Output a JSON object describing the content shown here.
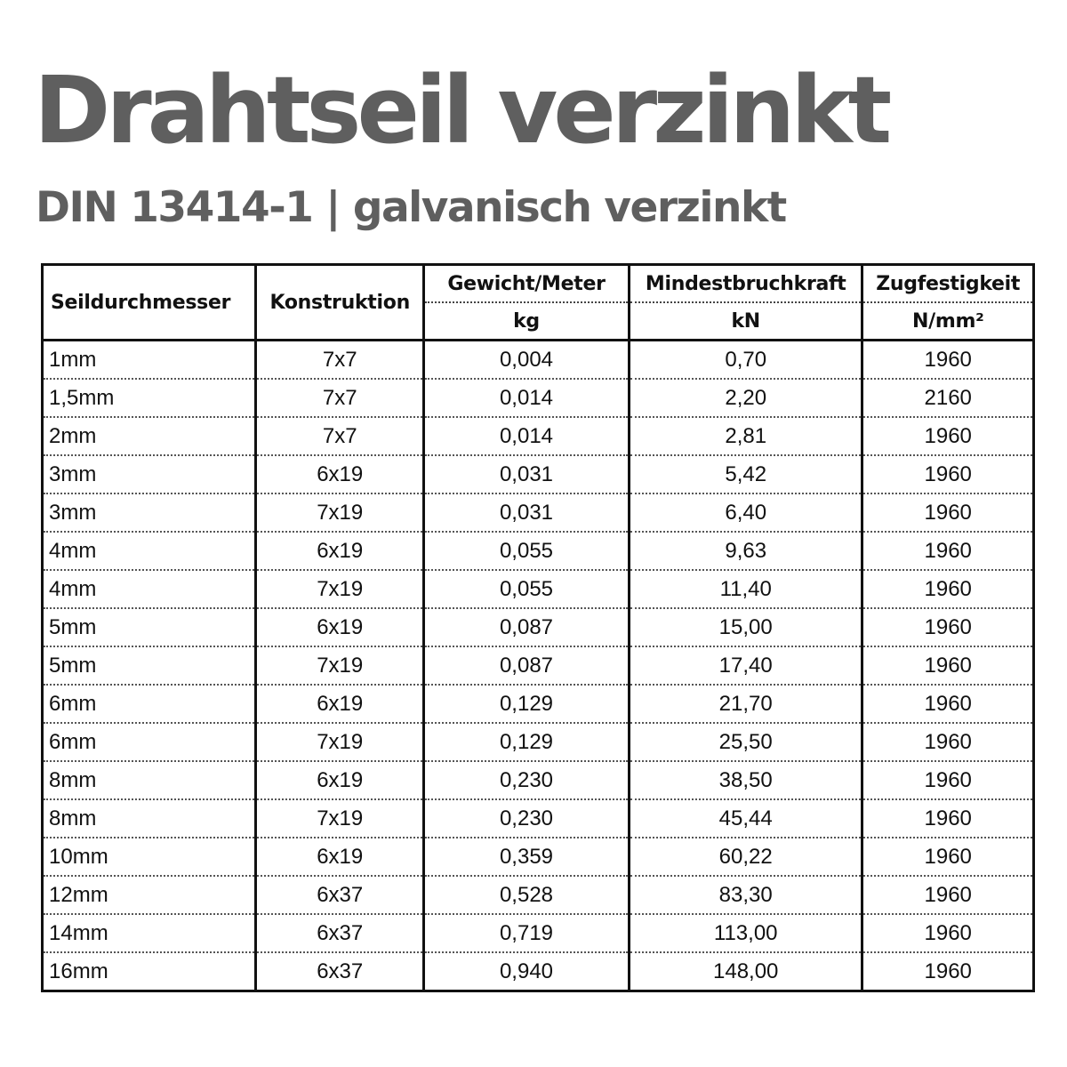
{
  "title": "Drahtseil verzinkt",
  "subtitle": "DIN 13414-1 | galvanisch verzinkt",
  "table": {
    "headers": {
      "diameter": "Seildurchmesser",
      "construction": "Konstruktion",
      "weight": "Gewicht/Meter",
      "weight_unit": "kg",
      "breaking_force": "Mindestbruchkraft",
      "breaking_force_unit": "kN",
      "tensile_strength": "Zugfestigkeit",
      "tensile_strength_unit": "N/mm²"
    },
    "rows": [
      [
        "1mm",
        "7x7",
        "0,004",
        "0,70",
        "1960"
      ],
      [
        "1,5mm",
        "7x7",
        "0,014",
        "2,20",
        "2160"
      ],
      [
        "2mm",
        "7x7",
        "0,014",
        "2,81",
        "1960"
      ],
      [
        "3mm",
        "6x19",
        "0,031",
        "5,42",
        "1960"
      ],
      [
        "3mm",
        "7x19",
        "0,031",
        "6,40",
        "1960"
      ],
      [
        "4mm",
        "6x19",
        "0,055",
        "9,63",
        "1960"
      ],
      [
        "4mm",
        "7x19",
        "0,055",
        "11,40",
        "1960"
      ],
      [
        "5mm",
        "6x19",
        "0,087",
        "15,00",
        "1960"
      ],
      [
        "5mm",
        "7x19",
        "0,087",
        "17,40",
        "1960"
      ],
      [
        "6mm",
        "6x19",
        "0,129",
        "21,70",
        "1960"
      ],
      [
        "6mm",
        "7x19",
        "0,129",
        "25,50",
        "1960"
      ],
      [
        "8mm",
        "6x19",
        "0,230",
        "38,50",
        "1960"
      ],
      [
        "8mm",
        "7x19",
        "0,230",
        "45,44",
        "1960"
      ],
      [
        "10mm",
        "6x19",
        "0,359",
        "60,22",
        "1960"
      ],
      [
        "12mm",
        "6x37",
        "0,528",
        "83,30",
        "1960"
      ],
      [
        "14mm",
        "6x37",
        "0,719",
        "113,00",
        "1960"
      ],
      [
        "16mm",
        "6x37",
        "0,940",
        "148,00",
        "1960"
      ]
    ]
  }
}
